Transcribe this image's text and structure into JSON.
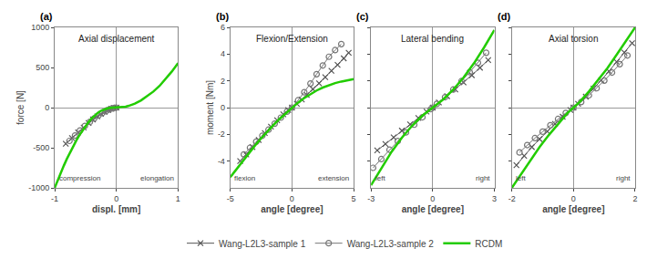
{
  "chart_data": [
    {
      "type": "line",
      "title": "Axial displacement",
      "xlabel": "displ. [mm]",
      "ylabel": "force [N]",
      "annotations": [
        "(a)",
        "compression",
        "elongation"
      ],
      "xlim": [
        -1,
        1
      ],
      "ylim": [
        -1000,
        1000
      ],
      "xticks": [
        -1,
        0,
        1
      ],
      "yticks": [
        -1000,
        -500,
        0,
        500,
        1000
      ],
      "grid": false,
      "legend": "bottom",
      "series": [
        {
          "name": "Wang-L2L3-sample 1",
          "color": "#555555",
          "marker": "x",
          "line_style": "solid",
          "x": [
            -0.82,
            -0.72,
            -0.62,
            -0.53,
            -0.45,
            -0.38,
            -0.31,
            -0.25,
            -0.19,
            -0.13,
            -0.08,
            -0.04,
            0.0
          ],
          "values": [
            -450,
            -380,
            -310,
            -248,
            -192,
            -148,
            -110,
            -78,
            -52,
            -30,
            -14,
            -4,
            0
          ]
        },
        {
          "name": "Wang-L2L3-sample 2",
          "color": "#777777",
          "marker": "circle",
          "line_style": "solid",
          "x": [
            -0.76,
            -0.67,
            -0.59,
            -0.51,
            -0.43,
            -0.36,
            -0.29,
            -0.23,
            -0.17,
            -0.12,
            -0.07,
            -0.03,
            0.0
          ],
          "values": [
            -415,
            -348,
            -286,
            -228,
            -178,
            -135,
            -98,
            -68,
            -44,
            -25,
            -11,
            -3,
            0
          ]
        },
        {
          "name": "RCDM",
          "color": "#22cc00",
          "line_style": "solid",
          "x": [
            -1.0,
            -0.95,
            -0.9,
            -0.85,
            -0.8,
            -0.75,
            -0.7,
            -0.65,
            -0.6,
            -0.55,
            -0.5,
            -0.45,
            -0.4,
            -0.35,
            -0.3,
            -0.25,
            -0.2,
            -0.15,
            -0.1,
            -0.05,
            0.0,
            0.05,
            0.1,
            0.15,
            0.2,
            0.3,
            0.4,
            0.5,
            0.6,
            0.7,
            0.8,
            0.9,
            1.0
          ],
          "values": [
            -1000,
            -900,
            -810,
            -720,
            -635,
            -555,
            -480,
            -410,
            -345,
            -285,
            -230,
            -180,
            -135,
            -97,
            -65,
            -40,
            -22,
            -11,
            -4,
            -1,
            0,
            2,
            6,
            12,
            22,
            50,
            90,
            140,
            200,
            270,
            355,
            450,
            555
          ]
        }
      ]
    },
    {
      "type": "line",
      "title": "Flexion/Extension",
      "xlabel": "angle [degree]",
      "ylabel": "moment [Nm]",
      "annotations": [
        "(b)",
        "flexion",
        "extension"
      ],
      "xlim": [
        -5,
        5
      ],
      "ylim": [
        -6,
        6
      ],
      "xticks": [
        -5,
        0,
        5
      ],
      "yticks": [
        -4,
        -2,
        0,
        2,
        4,
        6
      ],
      "grid": false,
      "series": [
        {
          "name": "Wang-L2L3-sample 1",
          "color": "#555555",
          "marker": "x",
          "line_style": "solid",
          "x": [
            -4.2,
            -3.7,
            -3.2,
            -2.7,
            -2.2,
            -1.7,
            -1.2,
            -0.7,
            -0.3,
            0.0,
            0.4,
            0.8,
            1.2,
            1.7,
            2.2,
            2.7,
            3.2,
            3.7,
            4.2,
            4.6
          ],
          "values": [
            -4.0,
            -3.5,
            -2.95,
            -2.42,
            -1.9,
            -1.42,
            -0.95,
            -0.5,
            -0.18,
            0.0,
            0.28,
            0.6,
            0.95,
            1.38,
            1.82,
            2.28,
            2.75,
            3.2,
            3.68,
            4.1
          ]
        },
        {
          "name": "Wang-L2L3-sample 2",
          "color": "#777777",
          "marker": "circle",
          "line_style": "solid",
          "x": [
            -3.9,
            -3.4,
            -2.9,
            -2.4,
            -1.9,
            -1.4,
            -0.9,
            -0.4,
            0.0,
            0.5,
            1.0,
            1.5,
            2.0,
            2.5,
            3.0,
            3.5,
            4.0
          ],
          "values": [
            -3.5,
            -3.0,
            -2.55,
            -2.1,
            -1.65,
            -1.2,
            -0.75,
            -0.3,
            0.0,
            0.55,
            1.15,
            1.8,
            2.5,
            3.15,
            3.8,
            4.3,
            4.75
          ]
        },
        {
          "name": "RCDM",
          "color": "#22cc00",
          "line_style": "solid",
          "x": [
            -5.0,
            -4.5,
            -4.0,
            -3.5,
            -3.0,
            -2.5,
            -2.0,
            -1.5,
            -1.0,
            -0.5,
            0.0,
            0.5,
            1.0,
            1.5,
            2.0,
            2.5,
            3.0,
            3.5,
            4.0,
            4.5,
            5.0
          ],
          "values": [
            -5.2,
            -4.6,
            -4.0,
            -3.4,
            -2.85,
            -2.3,
            -1.78,
            -1.3,
            -0.85,
            -0.42,
            0.0,
            0.38,
            0.72,
            1.02,
            1.28,
            1.5,
            1.68,
            1.83,
            1.95,
            2.05,
            2.13
          ]
        }
      ]
    },
    {
      "type": "line",
      "title": "Lateral bending",
      "xlabel": "angle [degree]",
      "annotations": [
        "(c)",
        "left",
        "right"
      ],
      "xlim": [
        -3,
        3
      ],
      "ylim": [
        -6,
        6
      ],
      "xticks": [
        -3,
        0,
        3
      ],
      "yticks": [
        -4,
        -2,
        0,
        2,
        4,
        6
      ],
      "grid": false,
      "tick_labels": "x",
      "series": [
        {
          "name": "Wang-L2L3-sample 1",
          "color": "#555555",
          "marker": "x",
          "line_style": "solid",
          "x": [
            -2.7,
            -2.3,
            -1.9,
            -1.5,
            -1.1,
            -0.7,
            -0.3,
            0.0,
            0.3,
            0.7,
            1.1,
            1.5,
            1.9,
            2.3,
            2.7
          ],
          "values": [
            -3.2,
            -2.72,
            -2.22,
            -1.72,
            -1.25,
            -0.78,
            -0.3,
            0.0,
            0.38,
            0.85,
            1.35,
            1.88,
            2.42,
            2.98,
            3.55
          ]
        },
        {
          "name": "Wang-L2L3-sample 2",
          "color": "#777777",
          "marker": "circle",
          "line_style": "solid",
          "x": [
            -2.9,
            -2.5,
            -2.1,
            -1.7,
            -1.3,
            -0.9,
            -0.5,
            -0.1,
            0.0,
            0.2,
            0.6,
            1.0,
            1.4,
            1.8,
            2.2,
            2.6
          ],
          "values": [
            -4.5,
            -3.85,
            -3.15,
            -2.5,
            -1.85,
            -1.28,
            -0.72,
            -0.12,
            0.0,
            0.28,
            0.78,
            1.35,
            1.98,
            2.65,
            3.35,
            4.1
          ]
        },
        {
          "name": "RCDM",
          "color": "#22cc00",
          "line_style": "solid",
          "x": [
            -3.0,
            -2.5,
            -2.0,
            -1.5,
            -1.0,
            -0.5,
            0.0,
            0.5,
            1.0,
            1.5,
            2.0,
            2.5,
            3.0
          ],
          "values": [
            -5.8,
            -4.5,
            -3.3,
            -2.25,
            -1.35,
            -0.6,
            0.0,
            0.6,
            1.35,
            2.25,
            3.3,
            4.5,
            5.8
          ]
        }
      ]
    },
    {
      "type": "line",
      "title": "Axial torsion",
      "xlabel": "angle [degree]",
      "annotations": [
        "(d)",
        "left",
        "right"
      ],
      "xlim": [
        -2,
        2
      ],
      "ylim": [
        -6,
        6
      ],
      "xticks": [
        -2,
        0,
        2
      ],
      "yticks": [
        -4,
        -2,
        0,
        2,
        4,
        6
      ],
      "grid": false,
      "tick_labels": "x",
      "series": [
        {
          "name": "Wang-L2L3-sample 1",
          "color": "#555555",
          "marker": "x",
          "line_style": "solid",
          "x": [
            -1.85,
            -1.6,
            -1.35,
            -1.1,
            -0.85,
            -0.6,
            -0.35,
            -0.1,
            0.0,
            0.15,
            0.4,
            0.65,
            0.9,
            1.15,
            1.4,
            1.65,
            1.9
          ],
          "values": [
            -4.3,
            -3.6,
            -2.95,
            -2.35,
            -1.78,
            -1.22,
            -0.68,
            -0.18,
            0.0,
            0.28,
            0.82,
            1.42,
            2.05,
            2.72,
            3.42,
            4.12,
            4.82
          ]
        },
        {
          "name": "Wang-L2L3-sample 2",
          "color": "#777777",
          "marker": "circle",
          "line_style": "solid",
          "x": [
            -1.75,
            -1.5,
            -1.25,
            -1.0,
            -0.75,
            -0.5,
            -0.25,
            0.0,
            0.25,
            0.5,
            0.75,
            1.0,
            1.25,
            1.5,
            1.75
          ],
          "values": [
            -3.35,
            -2.8,
            -2.28,
            -1.8,
            -1.32,
            -0.85,
            -0.4,
            0.0,
            0.42,
            0.92,
            1.45,
            2.02,
            2.62,
            3.25,
            3.9
          ]
        },
        {
          "name": "RCDM",
          "color": "#22cc00",
          "line_style": "solid",
          "x": [
            -2.0,
            -1.7,
            -1.4,
            -1.1,
            -0.8,
            -0.5,
            -0.2,
            0.0,
            0.2,
            0.5,
            0.8,
            1.1,
            1.4,
            1.7,
            2.0
          ],
          "values": [
            -6.0,
            -5.0,
            -3.95,
            -2.95,
            -2.05,
            -1.2,
            -0.42,
            0.0,
            0.42,
            1.2,
            2.05,
            2.95,
            3.95,
            5.0,
            6.0
          ]
        }
      ]
    }
  ]
}
